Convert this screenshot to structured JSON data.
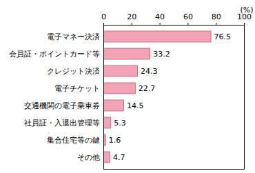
{
  "chart_data": {
    "type": "bar",
    "orientation": "horizontal",
    "categories": [
      "電子マネー決済",
      "会員証・ポイントカード等",
      "クレジット決済",
      "電子チケット",
      "交通機関の電子乗車券",
      "社員証・入退出管理等",
      "集合住宅等の鍵",
      "その他"
    ],
    "values": [
      76.5,
      33.2,
      24.3,
      22.7,
      14.5,
      5.3,
      1.6,
      4.7
    ],
    "color": "#f4a3b6",
    "x_label": "(%)",
    "xlim": [
      0,
      100
    ],
    "xticks": [
      0,
      20,
      40,
      60,
      80,
      100
    ],
    "grid": false,
    "data_labels": true
  }
}
